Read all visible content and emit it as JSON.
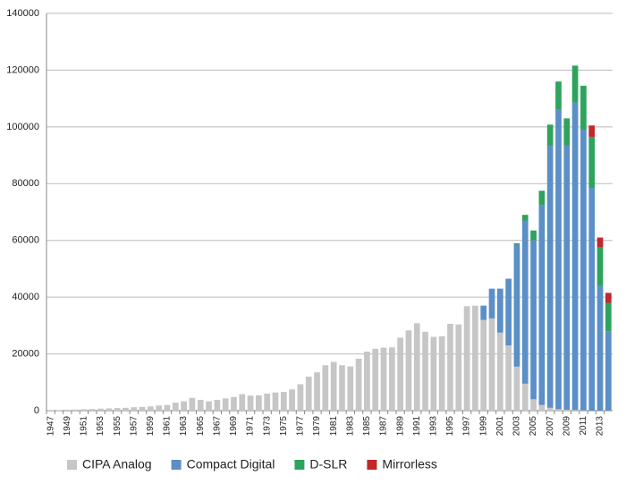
{
  "chart_data": {
    "type": "stacked_bar",
    "categories": [
      "1947",
      null,
      "1949",
      null,
      "1951",
      null,
      "1953",
      null,
      "1955",
      null,
      "1957",
      null,
      "1959",
      null,
      "1961",
      null,
      "1963",
      null,
      "1965",
      null,
      "1967",
      null,
      "1969",
      null,
      "1971",
      null,
      "1973",
      null,
      "1975",
      null,
      "1977",
      null,
      "1979",
      null,
      "1981",
      null,
      "1983",
      null,
      "1985",
      null,
      "1987",
      null,
      "1989",
      null,
      "1991",
      null,
      "1993",
      null,
      "1995",
      null,
      "1997",
      null,
      "1999",
      null,
      "2001",
      null,
      "2003",
      null,
      "2005",
      null,
      "2007",
      null,
      "2009",
      null,
      "2011",
      null,
      "2013",
      null
    ],
    "series": [
      {
        "name": "CIPA Analog",
        "color": "#c6c6c6",
        "values": [
          100,
          200,
          300,
          400,
          500,
          600,
          700,
          800,
          900,
          1000,
          1200,
          1300,
          1500,
          1800,
          2000,
          2800,
          3300,
          4500,
          3800,
          3300,
          3800,
          4300,
          4800,
          5800,
          5300,
          5400,
          6000,
          6400,
          6600,
          7500,
          9300,
          12000,
          13500,
          16000,
          17200,
          16000,
          15600,
          18300,
          20800,
          21800,
          22200,
          22300,
          25700,
          28300,
          30800,
          27800,
          26000,
          26200,
          30600,
          30400,
          36800,
          37000,
          32000,
          32500,
          27500,
          23000,
          15500,
          9500,
          4000,
          2000,
          1000,
          500,
          300,
          200,
          100,
          0,
          0,
          0
        ]
      },
      {
        "name": "Compact Digital",
        "color": "#5b8fc7",
        "values": [
          0,
          0,
          0,
          0,
          0,
          0,
          0,
          0,
          0,
          0,
          0,
          0,
          0,
          0,
          0,
          0,
          0,
          0,
          0,
          0,
          0,
          0,
          0,
          0,
          0,
          0,
          0,
          0,
          0,
          0,
          0,
          0,
          0,
          0,
          0,
          0,
          0,
          0,
          0,
          0,
          0,
          0,
          0,
          0,
          0,
          0,
          0,
          0,
          0,
          0,
          0,
          0,
          5000,
          10500,
          15500,
          23500,
          43000,
          57500,
          56000,
          70500,
          92300,
          105500,
          93200,
          108400,
          98900,
          78500,
          44000,
          28000
        ]
      },
      {
        "name": "D-SLR",
        "color": "#2ea35c",
        "values": [
          0,
          0,
          0,
          0,
          0,
          0,
          0,
          0,
          0,
          0,
          0,
          0,
          0,
          0,
          0,
          0,
          0,
          0,
          0,
          0,
          0,
          0,
          0,
          0,
          0,
          0,
          0,
          0,
          0,
          0,
          0,
          0,
          0,
          0,
          0,
          0,
          0,
          0,
          0,
          0,
          0,
          0,
          0,
          0,
          0,
          0,
          0,
          0,
          0,
          0,
          0,
          0,
          0,
          0,
          0,
          0,
          500,
          2000,
          3500,
          5000,
          7500,
          10000,
          9500,
          13000,
          15500,
          18000,
          13500,
          10000
        ]
      },
      {
        "name": "Mirrorless",
        "color": "#c0282a",
        "values": [
          0,
          0,
          0,
          0,
          0,
          0,
          0,
          0,
          0,
          0,
          0,
          0,
          0,
          0,
          0,
          0,
          0,
          0,
          0,
          0,
          0,
          0,
          0,
          0,
          0,
          0,
          0,
          0,
          0,
          0,
          0,
          0,
          0,
          0,
          0,
          0,
          0,
          0,
          0,
          0,
          0,
          0,
          0,
          0,
          0,
          0,
          0,
          0,
          0,
          0,
          0,
          0,
          0,
          0,
          0,
          0,
          0,
          0,
          0,
          0,
          0,
          0,
          0,
          0,
          0,
          4000,
          3500,
          3500
        ]
      }
    ],
    "ylim": [
      0,
      140000
    ],
    "yticks": [
      0,
      20000,
      40000,
      60000,
      80000,
      100000,
      120000,
      140000
    ],
    "grid": true,
    "legend": "bottom"
  }
}
